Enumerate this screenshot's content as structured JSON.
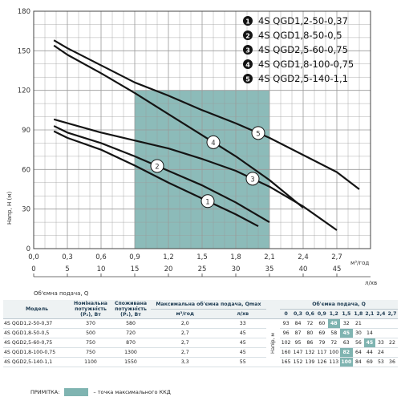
{
  "chart_data": {
    "type": "line",
    "ylabel": "Напр, Н (м)",
    "xlabel_top": "м³/год",
    "xlabel_bottom_unit": "л/хв",
    "xlabel_bottom": "Об'ємна подача, Q",
    "ylim": [
      0,
      180
    ],
    "xlim": [
      0,
      3.0
    ],
    "y_ticks": [
      "0",
      "30",
      "60",
      "90",
      "120",
      "150",
      "180"
    ],
    "x_ticks_m3": [
      "0,0",
      "0,3",
      "0,6",
      "0,9",
      "1,2",
      "1,5",
      "1,8",
      "2,1",
      "2,4",
      "2,7"
    ],
    "x_ticks_lpm": [
      "0",
      "5",
      "10",
      "15",
      "20",
      "25",
      "30",
      "35",
      "40",
      "45"
    ],
    "grid": true,
    "legend_position": "top-right",
    "efficiency_zone": [
      0.9,
      2.1
    ],
    "series": [
      {
        "name": "4S QGD1,2-50-0,37",
        "marker": "1",
        "x": [
          0.18,
          0.3,
          0.6,
          0.9,
          1.2,
          1.5,
          1.8,
          2.0
        ],
        "y": [
          89,
          84,
          75,
          63,
          50,
          38,
          26,
          17
        ]
      },
      {
        "name": "4S QGD1,8-50-0,5",
        "marker": "2",
        "x": [
          0.18,
          0.3,
          0.6,
          0.9,
          1.2,
          1.5,
          1.8,
          2.1
        ],
        "y": [
          93,
          88,
          80,
          70,
          59,
          48,
          35,
          20
        ]
      },
      {
        "name": "4S QGD2,5-60-0,75",
        "marker": "3",
        "x": [
          0.18,
          0.6,
          0.9,
          1.2,
          1.5,
          1.8,
          2.1,
          2.4,
          2.7
        ],
        "y": [
          98,
          88,
          82,
          76,
          68,
          59,
          47,
          32,
          14
        ]
      },
      {
        "name": "4S QGD1,8-100-0,75",
        "marker": "4",
        "x": [
          0.18,
          0.3,
          0.6,
          0.9,
          1.2,
          1.5,
          1.8,
          2.1,
          2.4
        ],
        "y": [
          154,
          147,
          133,
          118,
          102,
          86,
          70,
          52,
          31
        ]
      },
      {
        "name": "4S QGD2,5-140-1,1",
        "marker": "5",
        "x": [
          0.18,
          0.3,
          0.6,
          0.9,
          1.2,
          1.5,
          1.8,
          2.1,
          2.4,
          2.7,
          2.9
        ],
        "y": [
          158,
          152,
          139,
          126,
          116,
          105,
          95,
          84,
          71,
          58,
          45
        ]
      }
    ]
  },
  "legend": [
    {
      "n": "1",
      "label": "4S QGD1,2-50-0,37"
    },
    {
      "n": "2",
      "label": "4S QGD1,8-50-0,5"
    },
    {
      "n": "3",
      "label": "4S QGD2,5-60-0,75"
    },
    {
      "n": "4",
      "label": "4S QGD1,8-100-0,75"
    },
    {
      "n": "5",
      "label": "4S QGD2,5-140-1,1"
    }
  ],
  "table": {
    "h_model": "Модель",
    "h_nom": "Номінальна потужність (P₂), Вт",
    "h_cons": "Споживана потужність (P₁), Вт",
    "h_max": "Максимальна об'ємна подача, Qmax",
    "h_flow": "Об'ємна подача, Q",
    "h_m3": "м³/год",
    "h_lpm": "л/хв",
    "m3_cols": [
      "0",
      "0,3",
      "0,6",
      "0,9",
      "1,2",
      "1,5",
      "1,8",
      "2,1",
      "2,4",
      "2,7"
    ],
    "lpm_cols": [
      "0",
      "5",
      "10",
      "15",
      "20",
      "25",
      "30",
      "35",
      "40",
      "45"
    ],
    "head_label": "Напір, м",
    "rows": [
      {
        "model": "4S QGD1,2-50-0,37",
        "p2": "370",
        "p1": "580",
        "qm3": "2,0",
        "qlpm": "33",
        "h": [
          "93",
          "84",
          "72",
          "60",
          "48",
          "32",
          "21",
          "",
          "",
          ""
        ],
        "hl": 4
      },
      {
        "model": "4S QGD1,8-50-0,5",
        "p2": "500",
        "p1": "720",
        "qm3": "2,7",
        "qlpm": "45",
        "h": [
          "96",
          "87",
          "80",
          "69",
          "58",
          "45",
          "30",
          "14",
          "",
          ""
        ],
        "hl": 5
      },
      {
        "model": "4S QGD2,5-60-0,75",
        "p2": "750",
        "p1": "870",
        "qm3": "2,7",
        "qlpm": "45",
        "h": [
          "102",
          "95",
          "86",
          "79",
          "72",
          "63",
          "56",
          "45",
          "33",
          "22"
        ],
        "hl": 7
      },
      {
        "model": "4S QGD1,8-100-0,75",
        "p2": "750",
        "p1": "1300",
        "qm3": "2,7",
        "qlpm": "45",
        "h": [
          "160",
          "147",
          "132",
          "117",
          "100",
          "82",
          "64",
          "44",
          "24",
          ""
        ],
        "hl": 5
      },
      {
        "model": "4S QGD2,5-140-1,1",
        "p2": "1100",
        "p1": "1550",
        "qm3": "3,3",
        "qlpm": "55",
        "h": [
          "165",
          "152",
          "139",
          "126",
          "113",
          "100",
          "84",
          "69",
          "53",
          "36"
        ],
        "hl": 5
      }
    ]
  },
  "note": {
    "label": "ПРИМІТКА:",
    "text": "– точка максимального ККД"
  },
  "colors": {
    "zone": "#7fb4b1",
    "curve": "#141414",
    "grid": "#9a9a9a"
  }
}
